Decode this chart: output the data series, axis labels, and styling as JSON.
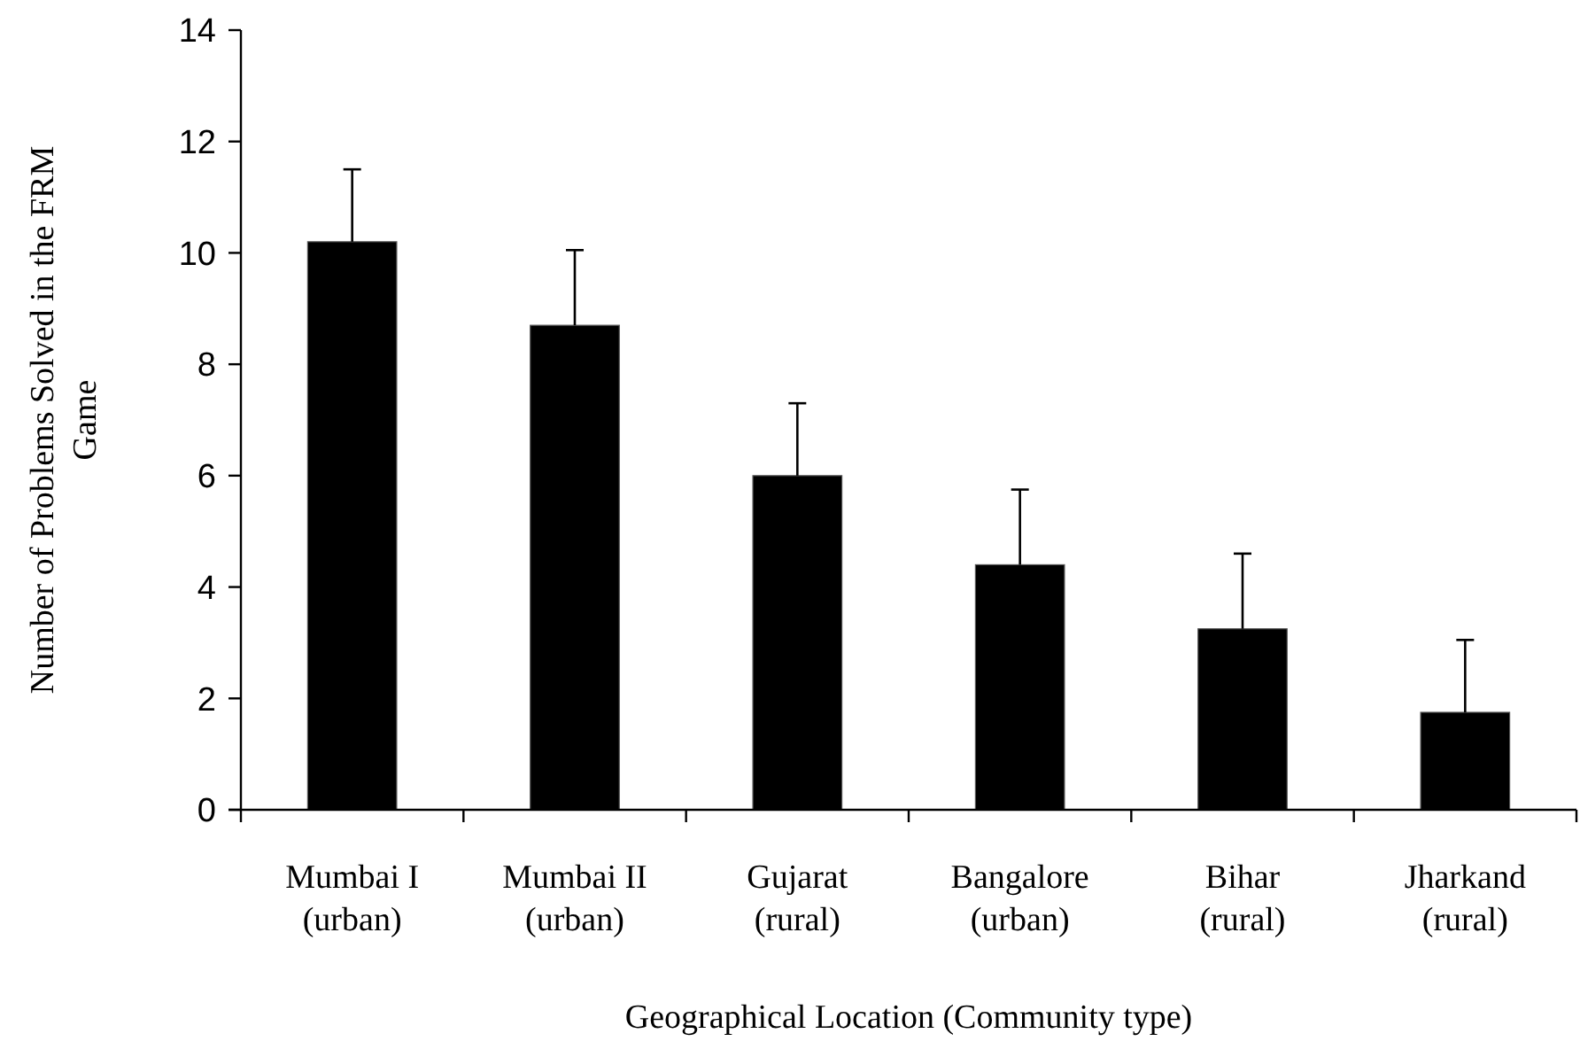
{
  "chart_data": {
    "type": "bar",
    "xlabel": "Geographical Location (Community type)",
    "ylabel": "Number of Problems Solved in the FRM Game",
    "categories": [
      "Mumbai I (urban)",
      "Mumbai II (urban)",
      "Gujarat (rural)",
      "Bangalore (urban)",
      "Bihar (rural)",
      "Jharkand (rural)"
    ],
    "values": [
      10.2,
      8.7,
      6.0,
      4.4,
      3.25,
      1.75
    ],
    "errors": [
      [
        10.2,
        11.5
      ],
      [
        8.7,
        10.05
      ],
      [
        6.0,
        7.3
      ],
      [
        4.4,
        5.75
      ],
      [
        3.25,
        4.6
      ],
      [
        1.75,
        3.05
      ]
    ],
    "color": "#000000",
    "ylim": [
      0,
      14
    ],
    "yticks": [
      0,
      2,
      4,
      6,
      8,
      10,
      12,
      14
    ],
    "grid": false
  }
}
